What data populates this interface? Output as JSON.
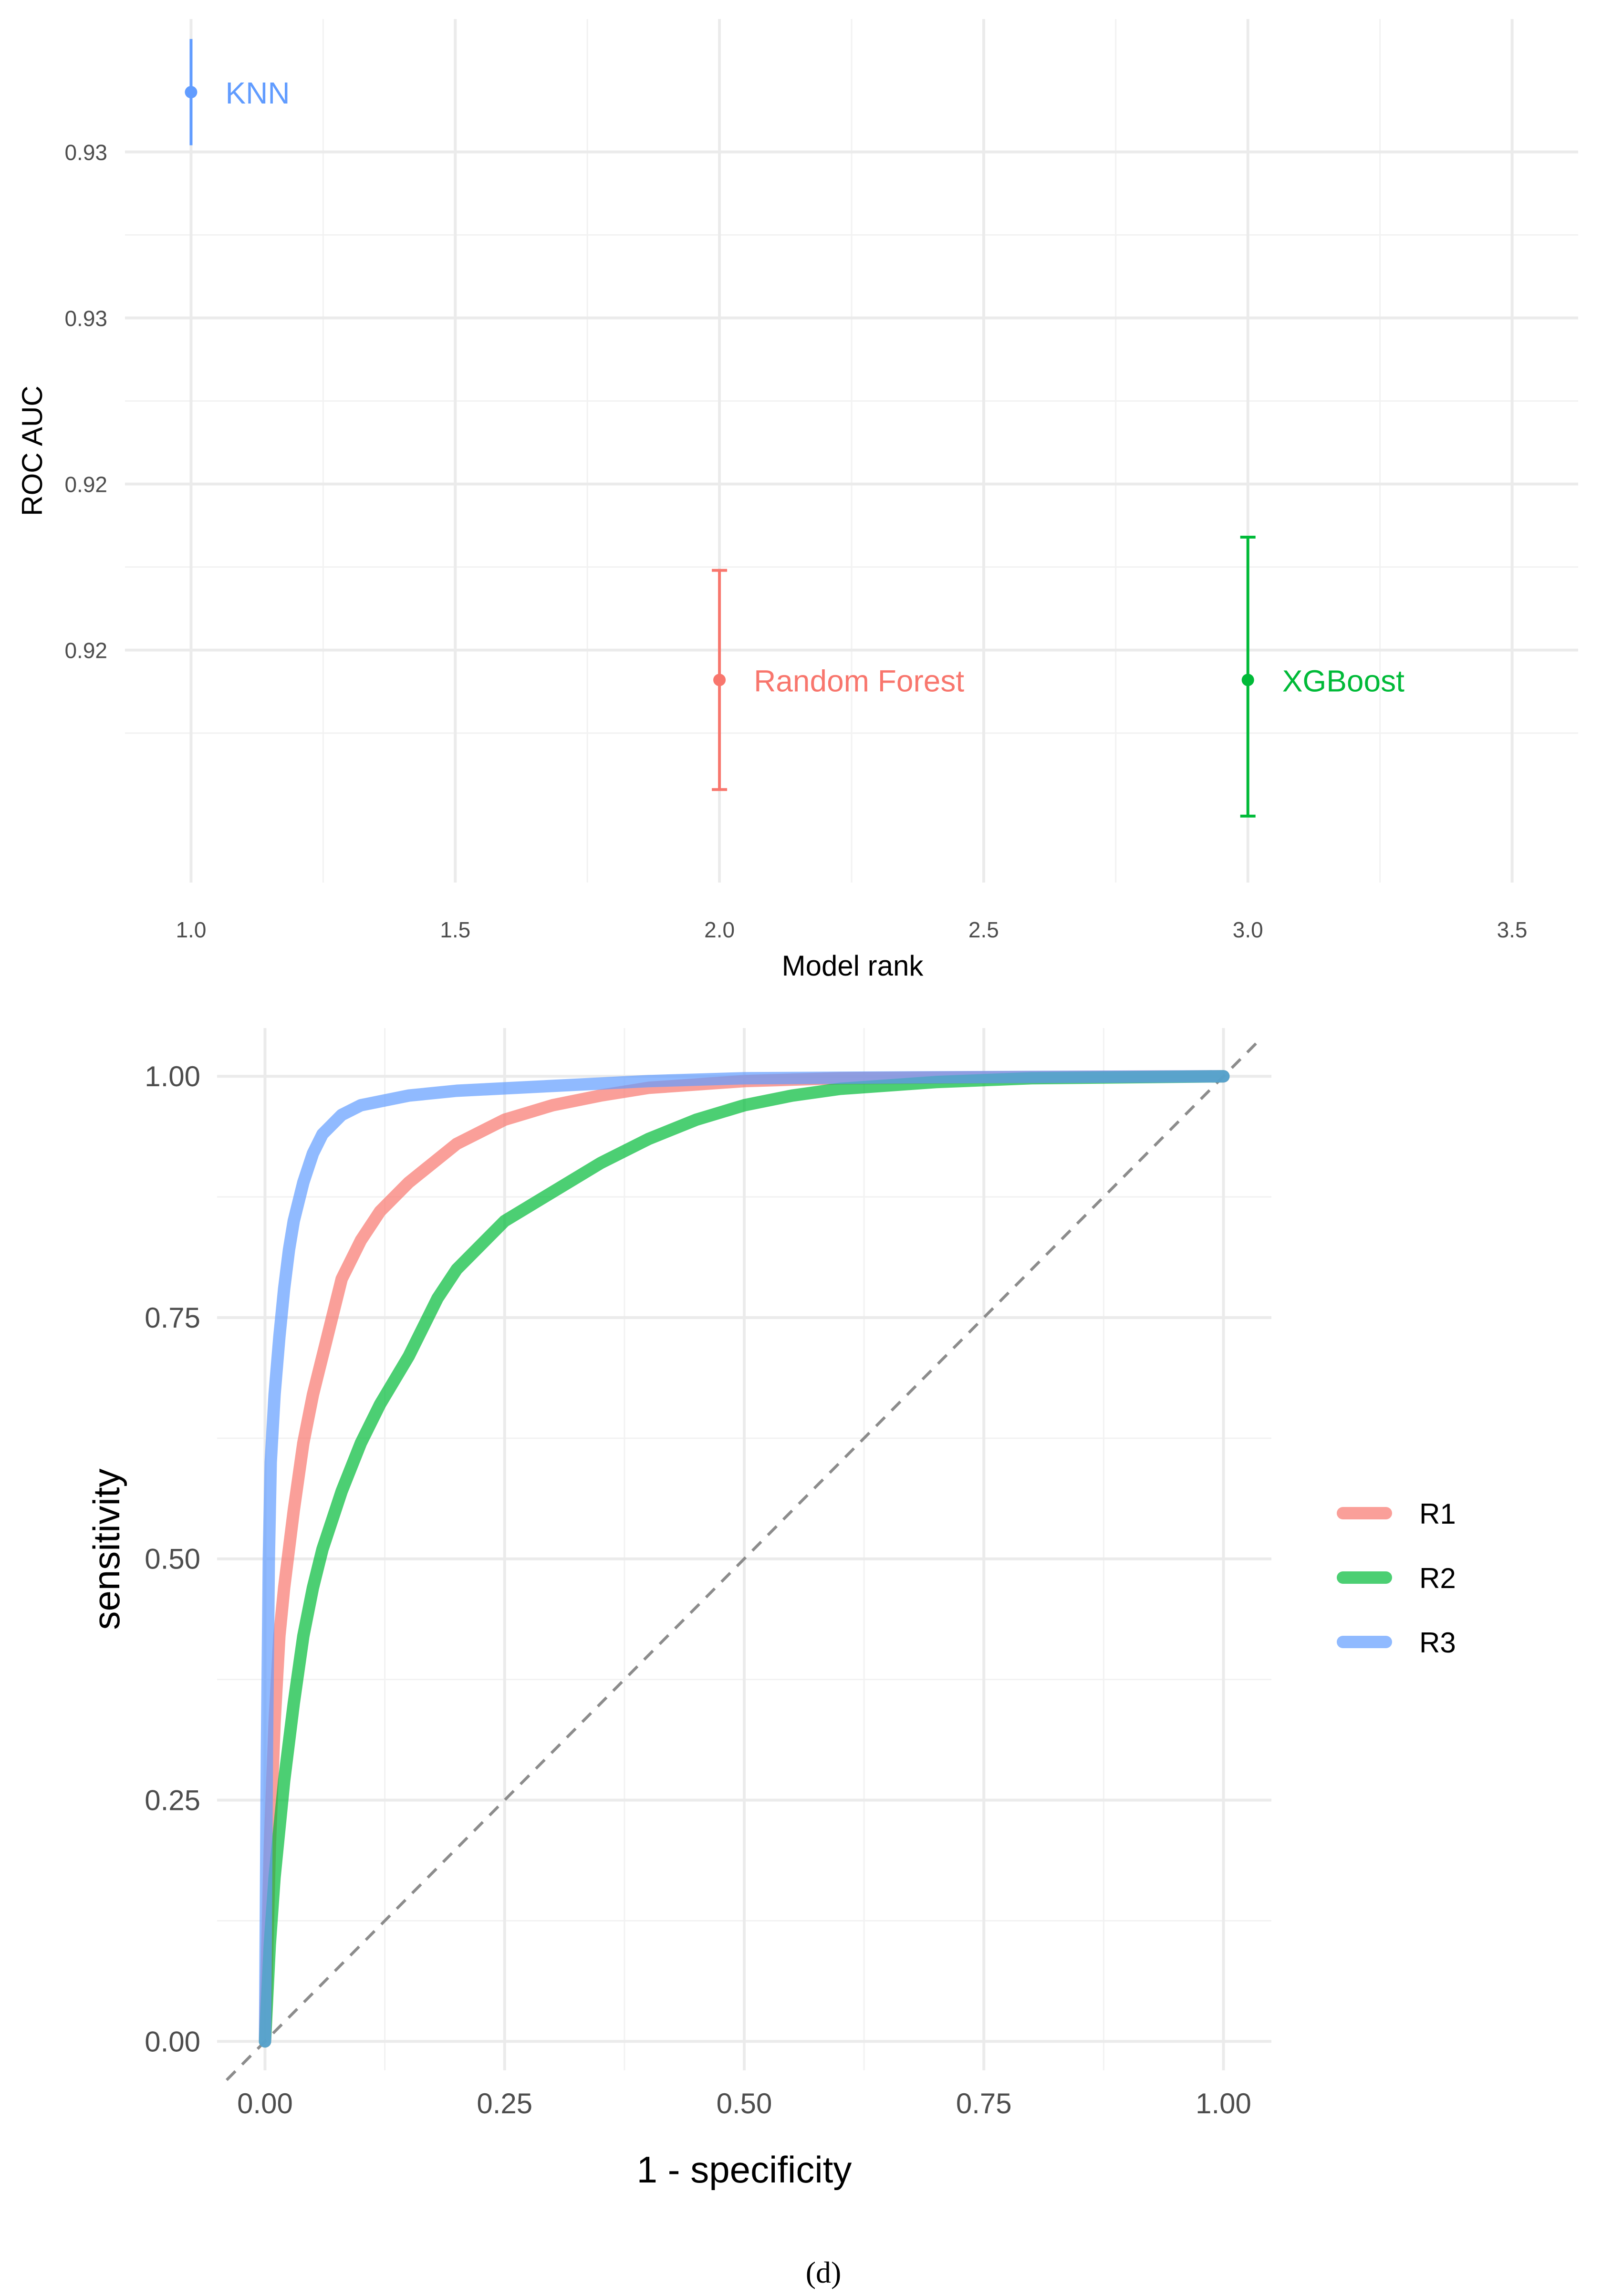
{
  "chart_data": [
    {
      "type": "scatter",
      "xlabel": "Model rank",
      "ylabel": "ROC AUC",
      "xlim": [
        0.875,
        3.625
      ],
      "ylim": [
        0.9165,
        0.9295
      ],
      "x_ticks": [
        1.0,
        1.5,
        2.0,
        2.5,
        3.0,
        3.5
      ],
      "x_tick_labels": [
        "1.0",
        "1.5",
        "2.0",
        "2.5",
        "3.0",
        "3.5"
      ],
      "y_ticks": [
        0.92,
        0.9225,
        0.925,
        0.9275
      ],
      "y_tick_labels": [
        "0.92",
        "0.92",
        "0.93",
        "0.93"
      ],
      "grid": true,
      "legend": "none",
      "series": [
        {
          "name": "KNN",
          "x": 1.0,
          "y": 0.9284,
          "lower": 0.9276,
          "upper": 0.9292,
          "color": "#619CFF",
          "whiskers": false
        },
        {
          "name": "Random Forest",
          "x": 2.0,
          "y": 0.91955,
          "lower": 0.9179,
          "upper": 0.9212,
          "color": "#F8766D",
          "whiskers": true
        },
        {
          "name": "XGBoost",
          "x": 3.0,
          "y": 0.91955,
          "lower": 0.9175,
          "upper": 0.9217,
          "color": "#00BA38",
          "whiskers": true
        }
      ]
    },
    {
      "type": "line",
      "xlabel": "1 - specificity",
      "ylabel": "sensitivity",
      "xlim": [
        -0.05,
        1.05
      ],
      "ylim": [
        -0.03,
        1.05
      ],
      "x_ticks": [
        0,
        0.25,
        0.5,
        0.75,
        1.0
      ],
      "x_tick_labels": [
        "0.00",
        "0.25",
        "0.50",
        "0.75",
        "1.00"
      ],
      "y_ticks": [
        0,
        0.25,
        0.5,
        0.75,
        1.0
      ],
      "y_tick_labels": [
        "0.00",
        "0.25",
        "0.50",
        "0.75",
        "1.00"
      ],
      "grid": true,
      "legend": "right",
      "reference_line": "diagonal dashed",
      "series": [
        {
          "name": "R1",
          "color": "#F8766D",
          "x": [
            0,
            0.005,
            0.01,
            0.015,
            0.02,
            0.03,
            0.04,
            0.05,
            0.06,
            0.07,
            0.08,
            0.1,
            0.12,
            0.15,
            0.2,
            0.25,
            0.3,
            0.35,
            0.4,
            0.5,
            0.6,
            0.75,
            1.0
          ],
          "y": [
            0,
            0.2,
            0.33,
            0.42,
            0.47,
            0.55,
            0.62,
            0.67,
            0.71,
            0.75,
            0.79,
            0.83,
            0.86,
            0.89,
            0.93,
            0.955,
            0.97,
            0.98,
            0.988,
            0.995,
            0.998,
            0.999,
            1.0
          ]
        },
        {
          "name": "R2",
          "color": "#00BA38",
          "x": [
            0,
            0.005,
            0.01,
            0.02,
            0.03,
            0.04,
            0.05,
            0.06,
            0.08,
            0.1,
            0.12,
            0.15,
            0.18,
            0.2,
            0.25,
            0.3,
            0.35,
            0.4,
            0.45,
            0.5,
            0.55,
            0.6,
            0.7,
            0.8,
            1.0
          ],
          "y": [
            0,
            0.1,
            0.17,
            0.27,
            0.35,
            0.42,
            0.47,
            0.51,
            0.57,
            0.62,
            0.66,
            0.71,
            0.77,
            0.8,
            0.85,
            0.88,
            0.91,
            0.935,
            0.955,
            0.97,
            0.98,
            0.987,
            0.994,
            0.998,
            1.0
          ]
        },
        {
          "name": "R3",
          "color": "#619CFF",
          "x": [
            0,
            0.002,
            0.004,
            0.006,
            0.01,
            0.015,
            0.02,
            0.025,
            0.03,
            0.04,
            0.05,
            0.06,
            0.08,
            0.1,
            0.15,
            0.2,
            0.3,
            0.4,
            0.5,
            0.7,
            1.0
          ],
          "y": [
            0,
            0.3,
            0.5,
            0.6,
            0.67,
            0.73,
            0.78,
            0.82,
            0.85,
            0.89,
            0.92,
            0.94,
            0.96,
            0.97,
            0.98,
            0.985,
            0.99,
            0.995,
            0.998,
            0.999,
            1.0
          ]
        }
      ]
    }
  ],
  "caption": "(d)"
}
